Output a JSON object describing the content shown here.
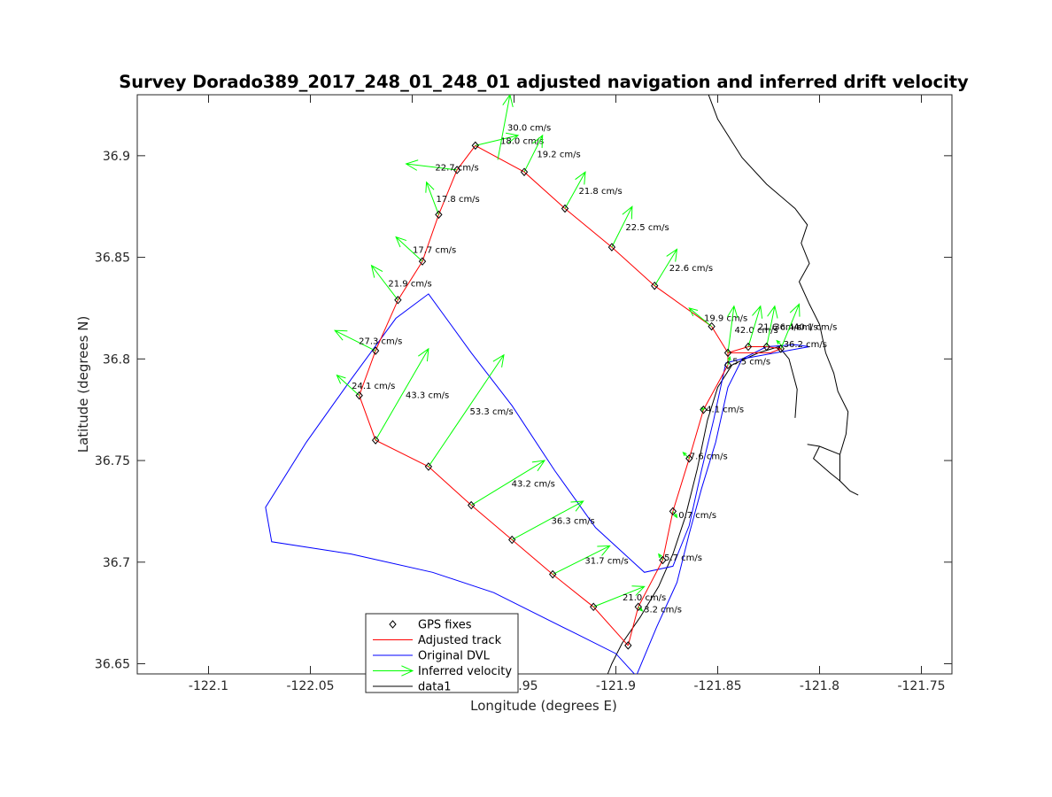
{
  "chart_data": {
    "type": "line",
    "title": "Survey Dorado389_2017_248_01_248_01 adjusted navigation and inferred drift velocity",
    "xlabel": "Longitude (degrees E)",
    "ylabel": "Latitude (degrees N)",
    "xlim": [
      -122.135,
      -121.735
    ],
    "ylim": [
      36.645,
      36.93
    ],
    "xticks": [
      -122.1,
      -122.05,
      -122.0,
      -121.95,
      -121.9,
      -121.85,
      -121.8,
      -121.75
    ],
    "xtick_labels": [
      "-122.1",
      "-122.05",
      "-122",
      "-121.95",
      "-121.9",
      "-121.85",
      "-121.8",
      "-121.75"
    ],
    "yticks": [
      36.65,
      36.7,
      36.75,
      36.8,
      36.85,
      36.9
    ],
    "ytick_labels": [
      "36.65",
      "36.7",
      "36.75",
      "36.8",
      "36.85",
      "36.9"
    ],
    "grid": false,
    "legend_position": "bottom-center",
    "legend": [
      {
        "label": "GPS fixes",
        "style": "marker",
        "color": "#000000"
      },
      {
        "label": "Adjusted track",
        "style": "line",
        "color": "#ff0000"
      },
      {
        "label": "Original DVL",
        "style": "line",
        "color": "#0000ff"
      },
      {
        "label": "Inferred velocity",
        "style": "arrow",
        "color": "#00ff00"
      },
      {
        "label": "data1",
        "style": "line",
        "color": "#000000"
      }
    ],
    "colors": {
      "gps": "#000000",
      "adjusted": "#ff0000",
      "dvl": "#0000ff",
      "velocity": "#00ff00",
      "coast": "#000000"
    },
    "series": [
      {
        "name": "GPS fixes",
        "points": [
          [
            -121.894,
            36.659
          ],
          [
            -121.889,
            36.678
          ],
          [
            -121.877,
            36.701
          ],
          [
            -121.872,
            36.725
          ],
          [
            -121.864,
            36.751
          ],
          [
            -121.857,
            36.775
          ],
          [
            -121.845,
            36.797
          ],
          [
            -121.845,
            36.803
          ],
          [
            -121.835,
            36.806
          ],
          [
            -121.826,
            36.806
          ],
          [
            -121.819,
            36.805
          ],
          [
            -121.853,
            36.816
          ],
          [
            -121.881,
            36.836
          ],
          [
            -121.902,
            36.855
          ],
          [
            -121.925,
            36.874
          ],
          [
            -121.945,
            36.892
          ],
          [
            -121.969,
            36.905
          ],
          [
            -121.978,
            36.893
          ],
          [
            -121.987,
            36.871
          ],
          [
            -121.995,
            36.848
          ],
          [
            -122.007,
            36.829
          ],
          [
            -122.018,
            36.804
          ],
          [
            -122.026,
            36.782
          ],
          [
            -122.018,
            36.76
          ],
          [
            -121.992,
            36.747
          ],
          [
            -121.971,
            36.728
          ],
          [
            -121.951,
            36.711
          ],
          [
            -121.931,
            36.694
          ],
          [
            -121.911,
            36.678
          ]
        ]
      },
      {
        "name": "Adjusted track",
        "points": [
          [
            -121.894,
            36.659
          ],
          [
            -121.889,
            36.678
          ],
          [
            -121.877,
            36.701
          ],
          [
            -121.872,
            36.725
          ],
          [
            -121.864,
            36.751
          ],
          [
            -121.857,
            36.775
          ],
          [
            -121.845,
            36.797
          ],
          [
            -121.845,
            36.803
          ],
          [
            -121.835,
            36.806
          ],
          [
            -121.826,
            36.806
          ],
          [
            -121.819,
            36.805
          ],
          [
            -121.824,
            36.803
          ],
          [
            -121.845,
            36.803
          ],
          [
            -121.853,
            36.816
          ],
          [
            -121.881,
            36.836
          ],
          [
            -121.902,
            36.855
          ],
          [
            -121.925,
            36.874
          ],
          [
            -121.945,
            36.892
          ],
          [
            -121.969,
            36.905
          ],
          [
            -121.978,
            36.893
          ],
          [
            -121.987,
            36.871
          ],
          [
            -121.995,
            36.848
          ],
          [
            -122.007,
            36.829
          ],
          [
            -122.018,
            36.804
          ],
          [
            -122.026,
            36.782
          ],
          [
            -122.018,
            36.76
          ],
          [
            -121.992,
            36.747
          ],
          [
            -121.971,
            36.728
          ],
          [
            -121.951,
            36.711
          ],
          [
            -121.931,
            36.694
          ],
          [
            -121.911,
            36.678
          ],
          [
            -121.894,
            36.659
          ]
        ]
      },
      {
        "name": "Original DVL",
        "points": [
          [
            -121.89,
            36.644
          ],
          [
            -121.88,
            36.668
          ],
          [
            -121.87,
            36.69
          ],
          [
            -121.864,
            36.714
          ],
          [
            -121.858,
            36.736
          ],
          [
            -121.851,
            36.759
          ],
          [
            -121.845,
            36.786
          ],
          [
            -121.838,
            36.8
          ],
          [
            -121.826,
            36.806
          ],
          [
            -121.812,
            36.807
          ],
          [
            -121.805,
            36.806
          ],
          [
            -121.838,
            36.8
          ],
          [
            -121.846,
            36.798
          ],
          [
            -121.852,
            36.77
          ],
          [
            -121.858,
            36.745
          ],
          [
            -121.864,
            36.718
          ],
          [
            -121.872,
            36.698
          ],
          [
            -121.886,
            36.695
          ],
          [
            -121.91,
            36.717
          ],
          [
            -121.93,
            36.745
          ],
          [
            -121.951,
            36.777
          ],
          [
            -121.971,
            36.803
          ],
          [
            -121.992,
            36.832
          ],
          [
            -122.008,
            36.82
          ],
          [
            -122.03,
            36.79
          ],
          [
            -122.052,
            36.759
          ],
          [
            -122.072,
            36.727
          ],
          [
            -122.069,
            36.71
          ],
          [
            -122.03,
            36.704
          ],
          [
            -121.99,
            36.695
          ],
          [
            -121.96,
            36.685
          ],
          [
            -121.94,
            36.675
          ],
          [
            -121.92,
            36.665
          ],
          [
            -121.9,
            36.655
          ],
          [
            -121.89,
            36.644
          ]
        ]
      },
      {
        "name": "data1",
        "points": [
          [
            -121.856,
            36.934
          ],
          [
            -121.85,
            36.918
          ],
          [
            -121.838,
            36.899
          ],
          [
            -121.826,
            36.886
          ],
          [
            -121.812,
            36.874
          ],
          [
            -121.806,
            36.866
          ],
          [
            -121.809,
            36.857
          ],
          [
            -121.805,
            36.847
          ],
          [
            -121.81,
            36.838
          ],
          [
            -121.805,
            36.827
          ],
          [
            -121.8,
            36.817
          ],
          [
            -121.797,
            36.803
          ],
          [
            -121.793,
            36.793
          ],
          [
            -121.791,
            36.784
          ],
          [
            -121.786,
            36.774
          ],
          [
            -121.787,
            36.763
          ],
          [
            -121.79,
            36.753
          ],
          [
            -121.79,
            36.74
          ],
          [
            -121.785,
            36.735
          ],
          [
            -121.781,
            36.733
          ],
          null,
          [
            -121.79,
            36.753
          ],
          [
            -121.8,
            36.757
          ],
          [
            -121.806,
            36.758
          ],
          null,
          [
            -121.8,
            36.757
          ],
          [
            -121.803,
            36.751
          ],
          [
            -121.795,
            36.744
          ],
          [
            -121.79,
            36.74
          ],
          null,
          [
            -121.812,
            36.771
          ],
          [
            -121.811,
            36.785
          ],
          [
            -121.815,
            36.8
          ],
          [
            -121.82,
            36.806
          ],
          null,
          [
            -121.82,
            36.806
          ],
          [
            -121.83,
            36.803
          ],
          [
            -121.843,
            36.797
          ],
          [
            -121.85,
            36.786
          ],
          [
            -121.855,
            36.77
          ],
          [
            -121.86,
            36.746
          ],
          [
            -121.866,
            36.722
          ],
          [
            -121.872,
            36.704
          ],
          [
            -121.879,
            36.688
          ],
          [
            -121.888,
            36.673
          ],
          [
            -121.897,
            36.66
          ],
          [
            -121.902,
            36.65
          ],
          [
            -121.904,
            36.645
          ]
        ]
      }
    ],
    "velocity_vectors": [
      {
        "x": -121.969,
        "y": 36.905,
        "dx": 0.021,
        "dy": 0.005,
        "label": "18.0 cm/s"
      },
      {
        "x": -121.958,
        "y": 36.898,
        "dx": 0.006,
        "dy": 0.032,
        "label": "30.0 cm/s"
      },
      {
        "x": -121.978,
        "y": 36.893,
        "dx": -0.025,
        "dy": 0.003,
        "label": "22.7 cm/s"
      },
      {
        "x": -121.945,
        "y": 36.892,
        "dx": 0.009,
        "dy": 0.018,
        "label": "19.2 cm/s"
      },
      {
        "x": -121.987,
        "y": 36.871,
        "dx": -0.006,
        "dy": 0.016,
        "label": "17.8 cm/s"
      },
      {
        "x": -121.925,
        "y": 36.874,
        "dx": 0.01,
        "dy": 0.018,
        "label": "21.8 cm/s"
      },
      {
        "x": -121.995,
        "y": 36.848,
        "dx": -0.013,
        "dy": 0.012,
        "label": "17.7 cm/s"
      },
      {
        "x": -121.902,
        "y": 36.855,
        "dx": 0.01,
        "dy": 0.02,
        "label": "22.5 cm/s"
      },
      {
        "x": -122.007,
        "y": 36.829,
        "dx": -0.013,
        "dy": 0.017,
        "label": "21.9 cm/s"
      },
      {
        "x": -121.881,
        "y": 36.836,
        "dx": 0.011,
        "dy": 0.018,
        "label": "22.6 cm/s"
      },
      {
        "x": -122.018,
        "y": 36.804,
        "dx": -0.02,
        "dy": 0.01,
        "label": "27.3 cm/s"
      },
      {
        "x": -121.853,
        "y": 36.816,
        "dx": -0.011,
        "dy": 0.009,
        "label": "19.9 cm/s"
      },
      {
        "x": -121.845,
        "y": 36.803,
        "dx": 0.003,
        "dy": 0.023,
        "label": "42.0 cm/s"
      },
      {
        "x": -121.835,
        "y": 36.806,
        "dx": 0.006,
        "dy": 0.02,
        "label": "21.6 cm/s"
      },
      {
        "x": -121.826,
        "y": 36.806,
        "dx": 0.004,
        "dy": 0.02,
        "label": "36.4 cm/s"
      },
      {
        "x": -121.819,
        "y": 36.805,
        "dx": 0.009,
        "dy": 0.022,
        "label": "40.1 cm/s"
      },
      {
        "x": -121.818,
        "y": 36.806,
        "dx": -0.003,
        "dy": 0.003,
        "label": "36.2 cm/s"
      },
      {
        "x": -122.026,
        "y": 36.782,
        "dx": -0.011,
        "dy": 0.01,
        "label": "24.1 cm/s"
      },
      {
        "x": -121.845,
        "y": 36.797,
        "dx": 0.001,
        "dy": 0.004,
        "label": "5.5 cm/s"
      },
      {
        "x": -121.857,
        "y": 36.775,
        "dx": -0.001,
        "dy": 0.001,
        "label": "4.1 cm/s"
      },
      {
        "x": -121.864,
        "y": 36.751,
        "dx": -0.003,
        "dy": 0.003,
        "label": "7.6 cm/s"
      },
      {
        "x": -121.872,
        "y": 36.725,
        "dx": 0.002,
        "dy": -0.003,
        "label": "0.7 cm/s"
      },
      {
        "x": -121.877,
        "y": 36.701,
        "dx": -0.002,
        "dy": 0.003,
        "label": "5.7 cm/s"
      },
      {
        "x": -121.889,
        "y": 36.678,
        "dx": 0.002,
        "dy": -0.002,
        "label": "3.2 cm/s"
      },
      {
        "x": -122.018,
        "y": 36.76,
        "dx": 0.026,
        "dy": 0.045,
        "label": "43.3 cm/s"
      },
      {
        "x": -121.992,
        "y": 36.747,
        "dx": 0.037,
        "dy": 0.055,
        "label": "53.3 cm/s"
      },
      {
        "x": -121.971,
        "y": 36.728,
        "dx": 0.036,
        "dy": 0.022,
        "label": "43.2 cm/s"
      },
      {
        "x": -121.951,
        "y": 36.711,
        "dx": 0.035,
        "dy": 0.019,
        "label": "36.3 cm/s"
      },
      {
        "x": -121.931,
        "y": 36.694,
        "dx": 0.028,
        "dy": 0.014,
        "label": "31.7 cm/s"
      },
      {
        "x": -121.911,
        "y": 36.678,
        "dx": 0.025,
        "dy": 0.01,
        "label": "21.0 cm/s"
      }
    ]
  }
}
